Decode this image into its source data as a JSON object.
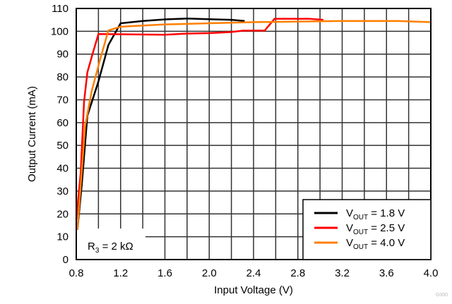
{
  "chart_data": {
    "type": "line",
    "xlabel": "Input Voltage (V)",
    "ylabel": "Output Current (mA)",
    "xlim": [
      0.8,
      4.0
    ],
    "ylim": [
      0,
      110
    ],
    "xticks": [
      "0.8",
      "1.2",
      "1.6",
      "2.0",
      "2.4",
      "2.8",
      "3.2",
      "3.6",
      "4.0"
    ],
    "yticks": [
      "0",
      "10",
      "20",
      "30",
      "40",
      "50",
      "60",
      "70",
      "80",
      "90",
      "100",
      "110"
    ],
    "x_grid_step": 0.2,
    "y_grid_step": 10,
    "grid": true,
    "legend_placement": "bottom-right",
    "annotation": {
      "main": "R",
      "sub": "3",
      "rest": " = 2 kΩ"
    },
    "watermark": "G000",
    "series": [
      {
        "name": "VOUT = 1.8 V",
        "label_main": "V",
        "label_sub": "OUT",
        "label_rest": " = 1.8 V",
        "color": "#000000",
        "x": [
          0.81,
          0.85,
          0.9,
          1.0,
          1.09,
          1.2,
          1.4,
          1.6,
          1.8,
          2.0,
          2.2,
          2.32
        ],
        "y": [
          13,
          33,
          63,
          78,
          94,
          103.5,
          104.5,
          105.2,
          105.6,
          105.3,
          105,
          104.5
        ]
      },
      {
        "name": "VOUT = 2.5 V",
        "label_main": "V",
        "label_sub": "OUT",
        "label_rest": " = 2.5 V",
        "color": "#ff0000",
        "x": [
          0.8,
          0.84,
          0.87,
          0.9,
          0.95,
          1.0,
          1.6,
          1.8,
          2.0,
          2.2,
          2.31,
          2.5,
          2.59,
          2.9,
          3.03
        ],
        "y": [
          17.6,
          38,
          69,
          82,
          90.6,
          98.8,
          98.5,
          99,
          99.2,
          99.7,
          100.3,
          100.3,
          105.5,
          105.5,
          105
        ]
      },
      {
        "name": "VOUT = 4.0 V",
        "label_main": "V",
        "label_sub": "OUT",
        "label_rest": " = 4.0 V",
        "color": "#ff7f00",
        "x": [
          0.81,
          0.88,
          0.94,
          1.02,
          1.09,
          1.2,
          1.6,
          2.0,
          2.4,
          3.2,
          3.7,
          4.0
        ],
        "y": [
          13,
          58.6,
          74,
          88.5,
          100.4,
          102,
          103,
          103.5,
          104,
          104.5,
          104.5,
          104
        ]
      }
    ]
  }
}
